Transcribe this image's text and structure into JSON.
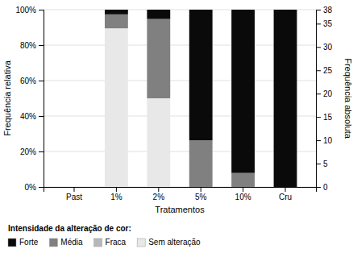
{
  "chart_data": {
    "type": "bar",
    "stacked": true,
    "xlabel": "Tratamentos",
    "ylabel": "Frequência relativa",
    "y2label": "Frequência absoluta",
    "legend_title": "Intensidade da alteração de cor:",
    "categories": [
      "Past",
      "1%",
      "2%",
      "5%",
      "10%",
      "Cru"
    ],
    "series": [
      {
        "name": "Forte",
        "color": "#0a0a0a",
        "values": [
          0,
          2.63,
          5.26,
          73.68,
          92.11,
          100.0
        ]
      },
      {
        "name": "Média",
        "color": "#808080",
        "values": [
          0,
          7.89,
          44.74,
          26.32,
          7.89,
          0.0
        ]
      },
      {
        "name": "Fraca",
        "color": "#b8b8b8",
        "values": [
          0,
          0.0,
          0.0,
          0.0,
          0.0,
          0.0
        ]
      },
      {
        "name": "Sem alteração",
        "color": "#e8e8e8",
        "values": [
          0,
          89.47,
          50.0,
          0.0,
          0.0,
          0.0
        ]
      }
    ],
    "ylim": [
      0,
      100
    ],
    "yticks": [
      {
        "value": 0,
        "label": "0%"
      },
      {
        "value": 20,
        "label": "20%"
      },
      {
        "value": 40,
        "label": "40%"
      },
      {
        "value": 60,
        "label": "60%"
      },
      {
        "value": 80,
        "label": "80%"
      },
      {
        "value": 100,
        "label": "100%"
      }
    ],
    "y2lim": [
      0,
      38
    ],
    "y2ticks": [
      0,
      5,
      10,
      15,
      20,
      25,
      30,
      35,
      38
    ],
    "grid": true,
    "legend": "bottom"
  }
}
